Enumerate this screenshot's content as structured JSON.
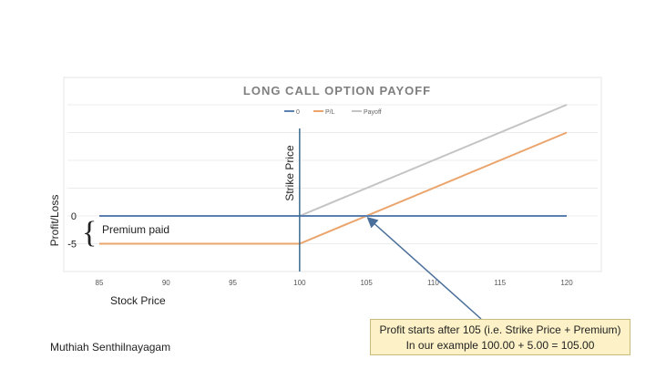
{
  "chart_data": {
    "type": "line",
    "title": "LONG CALL OPTION PAYOFF",
    "xlabel": "Stock Price",
    "ylabel": "Profit/Loss",
    "x_ticks": [
      85,
      90,
      95,
      100,
      105,
      110,
      115,
      120
    ],
    "y_ticks": [
      0,
      -5
    ],
    "xlim": [
      85,
      120
    ],
    "ylim": [
      -9,
      20
    ],
    "grid": true,
    "legend": "top-center",
    "series": [
      {
        "name": "0",
        "color": "#5b80b0",
        "x": [
          85,
          120
        ],
        "values": [
          0,
          0
        ]
      },
      {
        "name": "P/L",
        "color": "#eaa46c",
        "x": [
          85,
          100,
          120
        ],
        "values": [
          -5,
          -5,
          15
        ]
      },
      {
        "name": "Payoff",
        "color": "#c4c4c4",
        "x": [
          85,
          100,
          120
        ],
        "values": [
          0,
          0,
          20
        ]
      }
    ],
    "strike": {
      "x": 100,
      "label": "Strike Price"
    },
    "annotations": {
      "premium": "Premium paid",
      "brace": "{"
    }
  },
  "callout": {
    "line1": "Profit starts after 105 (i.e. Strike Price + Premium)",
    "line2": "In our example 100.00 + 5.00 = 105.00"
  },
  "author": "Muthiah Senthilnayagam"
}
